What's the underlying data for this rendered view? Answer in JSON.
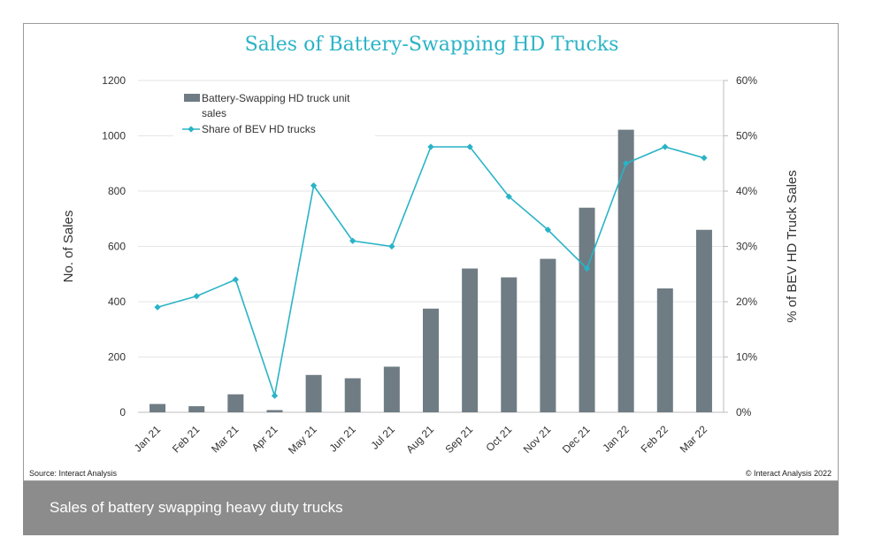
{
  "chart_data": {
    "type": "bar",
    "title": "Sales of Battery-Swapping HD Trucks",
    "categories": [
      "Jan 21",
      "Feb 21",
      "Mar 21",
      "Apr 21",
      "May 21",
      "Jun 21",
      "Jul 21",
      "Aug 21",
      "Sep 21",
      "Oct 21",
      "Nov 21",
      "Dec 21",
      "Jan 22",
      "Feb 22",
      "Mar 22"
    ],
    "series": [
      {
        "name": "Battery-Swapping HD truck unit sales",
        "type": "bar",
        "axis": "left",
        "color": "#6f7c84",
        "values": [
          30,
          22,
          65,
          8,
          135,
          123,
          165,
          375,
          520,
          488,
          555,
          740,
          1022,
          448,
          660
        ]
      },
      {
        "name": "Share of BEV HD trucks",
        "type": "line",
        "axis": "right",
        "color": "#2ab3c6",
        "values": [
          19,
          21,
          24,
          3,
          41,
          31,
          30,
          48,
          48,
          39,
          33,
          26,
          45,
          48,
          46
        ]
      }
    ],
    "ylabel": "No. of Sales",
    "y2label": "% of BEV HD Truck Sales",
    "ylim": [
      0,
      1200
    ],
    "y2lim": [
      0,
      60
    ],
    "yticks": [
      "0",
      "200",
      "400",
      "600",
      "800",
      "1000",
      "1200"
    ],
    "y2ticks": [
      "0%",
      "10%",
      "20%",
      "30%",
      "40%",
      "50%",
      "60%"
    ],
    "legend_position": "top-left",
    "grid": "horizontal"
  },
  "footer": {
    "source": "Source: Interact Analysis",
    "copyright": "© Interact Analysis 2022"
  },
  "caption": "Sales of battery swapping heavy duty trucks"
}
